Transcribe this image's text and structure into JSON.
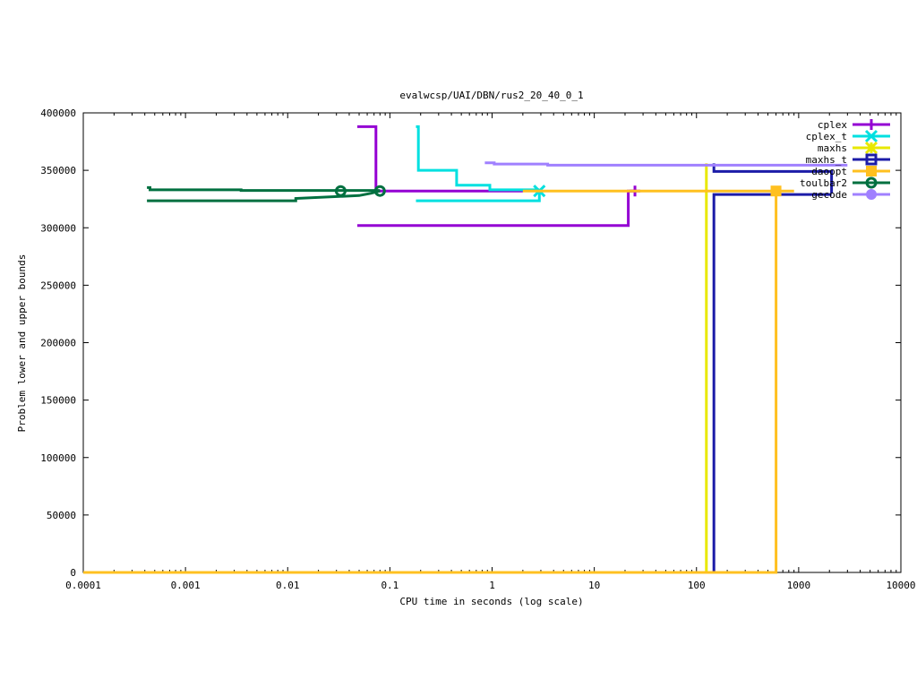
{
  "chart_data": {
    "type": "line",
    "title": "evalwcsp/UAI/DBN/rus2_20_40_0_1",
    "xlabel": "CPU time in seconds (log scale)",
    "ylabel": "Problem lower and upper bounds",
    "xscale": "log",
    "xlim": [
      0.0001,
      10000
    ],
    "ylim": [
      0,
      400000
    ],
    "x_ticks": [
      {
        "v": 0.0001,
        "label": "0.0001"
      },
      {
        "v": 0.001,
        "label": "0.001"
      },
      {
        "v": 0.01,
        "label": "0.01"
      },
      {
        "v": 0.1,
        "label": "0.1"
      },
      {
        "v": 1,
        "label": "1"
      },
      {
        "v": 10,
        "label": "10"
      },
      {
        "v": 100,
        "label": "100"
      },
      {
        "v": 1000,
        "label": "1000"
      },
      {
        "v": 10000,
        "label": "10000"
      }
    ],
    "y_ticks": [
      {
        "v": 0,
        "label": "0"
      },
      {
        "v": 50000,
        "label": "50000"
      },
      {
        "v": 100000,
        "label": "100000"
      },
      {
        "v": 150000,
        "label": "150000"
      },
      {
        "v": 200000,
        "label": "200000"
      },
      {
        "v": 250000,
        "label": "250000"
      },
      {
        "v": 300000,
        "label": "300000"
      },
      {
        "v": 350000,
        "label": "350000"
      },
      {
        "v": 400000,
        "label": "400000"
      }
    ],
    "grid": false,
    "legend_position": "top-right",
    "series": [
      {
        "name": "cplex",
        "color": "#9400d3",
        "marker": "plus",
        "upper": [
          [
            0.048,
            388000
          ],
          [
            0.073,
            388000
          ],
          [
            0.073,
            332000
          ],
          [
            2.0,
            332000
          ]
        ],
        "lower": [
          [
            0.048,
            302000
          ],
          [
            21.5,
            302000
          ],
          [
            21.5,
            332000
          ],
          [
            25,
            332000
          ]
        ],
        "markers": [
          [
            25,
            332000
          ]
        ]
      },
      {
        "name": "cplex_t",
        "color": "#00e0e0",
        "marker": "x",
        "upper": [
          [
            0.18,
            388000
          ],
          [
            0.19,
            388000
          ],
          [
            0.19,
            350000
          ],
          [
            0.45,
            350000
          ],
          [
            0.45,
            337000
          ],
          [
            0.95,
            337000
          ],
          [
            0.95,
            333000
          ],
          [
            2.9,
            333000
          ]
        ],
        "lower": [
          [
            0.18,
            323500
          ],
          [
            2.9,
            323500
          ],
          [
            2.9,
            332000
          ]
        ],
        "markers": [
          [
            2.9,
            332000
          ]
        ]
      },
      {
        "name": "maxhs",
        "color": "#e8e800",
        "marker": "star",
        "upper": [
          [
            125,
            356000
          ],
          [
            125,
            0
          ]
        ],
        "lower": [
          [
            0.0001,
            0
          ],
          [
            125,
            0
          ]
        ],
        "markers": []
      },
      {
        "name": "maxhs_t",
        "color": "#1c1ca8",
        "marker": "box",
        "upper": [
          [
            148,
            356000
          ],
          [
            148,
            349000
          ],
          [
            2100,
            349000
          ],
          [
            2100,
            330000
          ]
        ],
        "lower": [
          [
            148,
            0
          ],
          [
            148,
            329000
          ],
          [
            2100,
            329000
          ]
        ],
        "markers": []
      },
      {
        "name": "daoopt",
        "color": "#ffc020",
        "marker": "filled-box",
        "upper": [
          [
            2.0,
            332000
          ],
          [
            900,
            332000
          ]
        ],
        "lower": [
          [
            0.0001,
            0
          ],
          [
            600,
            0
          ],
          [
            600,
            332000
          ]
        ],
        "markers": [
          [
            600,
            332000
          ]
        ]
      },
      {
        "name": "toulbar2",
        "color": "#007040",
        "marker": "circle",
        "upper": [
          [
            0.00042,
            335000
          ],
          [
            0.00045,
            335000
          ],
          [
            0.00045,
            333000
          ],
          [
            0.0035,
            333000
          ],
          [
            0.0035,
            332500
          ],
          [
            0.033,
            332500
          ],
          [
            0.08,
            332500
          ]
        ],
        "lower": [
          [
            0.00042,
            323500
          ],
          [
            0.012,
            323500
          ],
          [
            0.012,
            325500
          ],
          [
            0.05,
            328000
          ],
          [
            0.065,
            330000
          ],
          [
            0.08,
            332000
          ]
        ],
        "markers": [
          [
            0.033,
            332000
          ],
          [
            0.08,
            332000
          ]
        ]
      },
      {
        "name": "gecode",
        "color": "#a080ff",
        "marker": "filled-circle",
        "upper": [
          [
            0.85,
            356500
          ],
          [
            1.05,
            356500
          ],
          [
            1.05,
            355500
          ],
          [
            3.5,
            355500
          ],
          [
            3.5,
            354500
          ],
          [
            3000,
            354500
          ]
        ],
        "lower": [],
        "markers": []
      }
    ]
  }
}
